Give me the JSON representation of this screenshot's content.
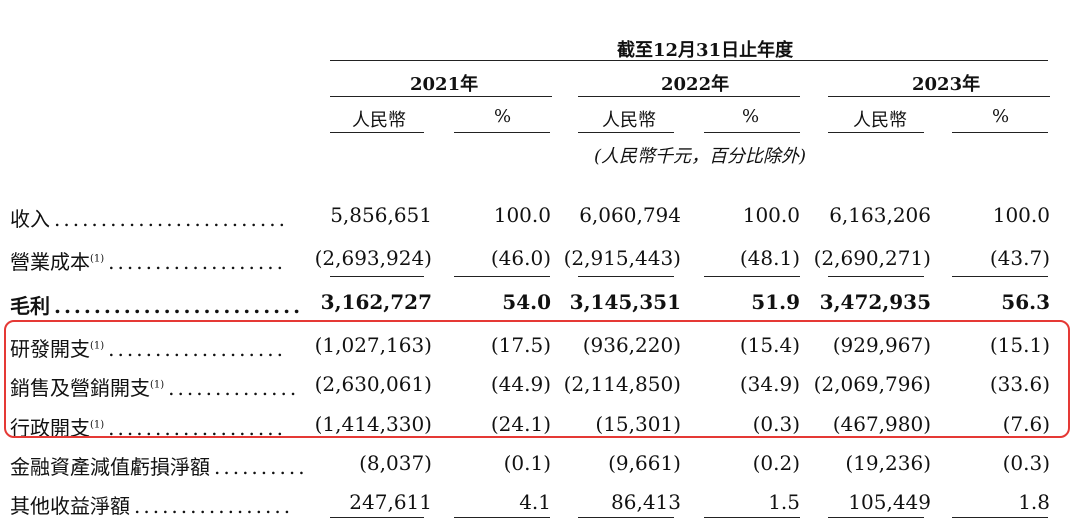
{
  "header": {
    "period": "截至12月31日止年度",
    "years": [
      "2021年",
      "2022年",
      "2023年"
    ],
    "col_rmb": "人民幣",
    "col_pct": "%",
    "unit_note": "(人民幣千元，百分比除外)"
  },
  "rows": [
    {
      "label": "收入",
      "sup": "",
      "bold": false,
      "v": [
        "5,856,651",
        "100.0",
        "6,060,794",
        "100.0",
        "6,163,206",
        "100.0"
      ]
    },
    {
      "label": "營業成本",
      "sup": "(1)",
      "bold": false,
      "v": [
        "(2,693,924)",
        "(46.0)",
        "(2,915,443)",
        "(48.1)",
        "(2,690,271)",
        "(43.7)"
      ]
    },
    {
      "label": "毛利",
      "sup": "",
      "bold": true,
      "v": [
        "3,162,727",
        "54.0",
        "3,145,351",
        "51.9",
        "3,472,935",
        "56.3"
      ]
    },
    {
      "label": "研發開支",
      "sup": "(1)",
      "bold": false,
      "v": [
        "(1,027,163)",
        "(17.5)",
        "(936,220)",
        "(15.4)",
        "(929,967)",
        "(15.1)"
      ]
    },
    {
      "label": "銷售及營銷開支",
      "sup": "(1)",
      "bold": false,
      "v": [
        "(2,630,061)",
        "(44.9)",
        "(2,114,850)",
        "(34.9)",
        "(2,069,796)",
        "(33.6)"
      ]
    },
    {
      "label": "行政開支",
      "sup": "(1)",
      "bold": false,
      "v": [
        "(1,414,330)",
        "(24.1)",
        "(15,301)",
        "(0.3)",
        "(467,980)",
        "(7.6)"
      ]
    },
    {
      "label": "金融資產減值虧損淨額",
      "sup": "",
      "bold": false,
      "v": [
        "(8,037)",
        "(0.1)",
        "(9,661)",
        "(0.2)",
        "(19,236)",
        "(0.3)"
      ]
    },
    {
      "label": "其他收益淨額",
      "sup": "",
      "bold": false,
      "v": [
        "247,611",
        "4.1",
        "86,413",
        "1.5",
        "105,449",
        "1.8"
      ]
    }
  ]
}
